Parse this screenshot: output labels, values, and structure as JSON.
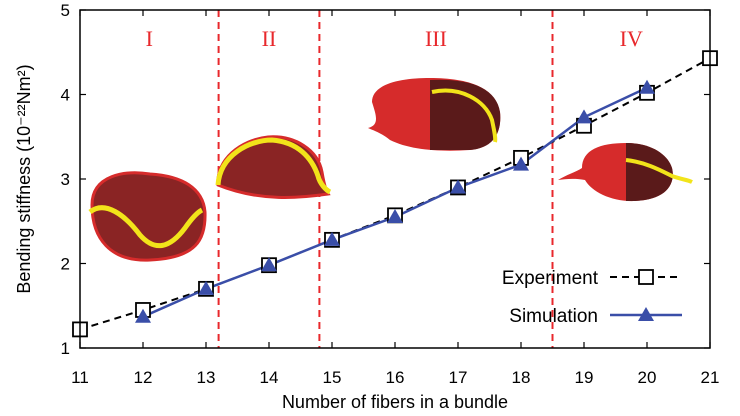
{
  "chart_data": {
    "type": "line",
    "title": "",
    "xlabel": "Number of fibers in a bundle",
    "ylabel": "Bending stiffness (10⁻²²Nm²)",
    "xlim": [
      11,
      21
    ],
    "ylim": [
      1,
      5
    ],
    "xticks": [
      "11",
      "12",
      "13",
      "14",
      "15",
      "16",
      "17",
      "18",
      "19",
      "20",
      "21"
    ],
    "yticks": [
      "1",
      "2",
      "3",
      "4",
      "5"
    ],
    "grid": false,
    "legend_position": "bottom-right",
    "series": [
      {
        "name": "Experiment",
        "color": "#000000",
        "marker": "open-square",
        "line_style": "dashed",
        "x": [
          11,
          12,
          13,
          14,
          15,
          16,
          17,
          18,
          19,
          20,
          21
        ],
        "y": [
          1.22,
          1.45,
          1.7,
          1.98,
          2.28,
          2.57,
          2.9,
          3.25,
          3.63,
          4.02,
          4.43
        ]
      },
      {
        "name": "Simulation",
        "color": "#3a4ea8",
        "marker": "filled-triangle",
        "line_style": "solid",
        "x": [
          12,
          13,
          14,
          15,
          16,
          17,
          18,
          19,
          20
        ],
        "y": [
          1.37,
          1.7,
          1.98,
          2.28,
          2.55,
          2.9,
          3.17,
          3.73,
          4.08
        ]
      }
    ],
    "regions": [
      {
        "label": "I",
        "x_start": 11,
        "x_end": 13.2
      },
      {
        "label": "II",
        "x_start": 13.2,
        "x_end": 14.8
      },
      {
        "label": "III",
        "x_start": 14.8,
        "x_end": 18.5
      },
      {
        "label": "IV",
        "x_start": 18.5,
        "x_end": 21
      }
    ],
    "region_boundaries": [
      13.2,
      14.8,
      18.5
    ],
    "boundary_color": "#e8282c",
    "region_label_color": "#e8282c",
    "illustration_color": "#d62b2b",
    "fiber_color": "#f2e41a"
  }
}
